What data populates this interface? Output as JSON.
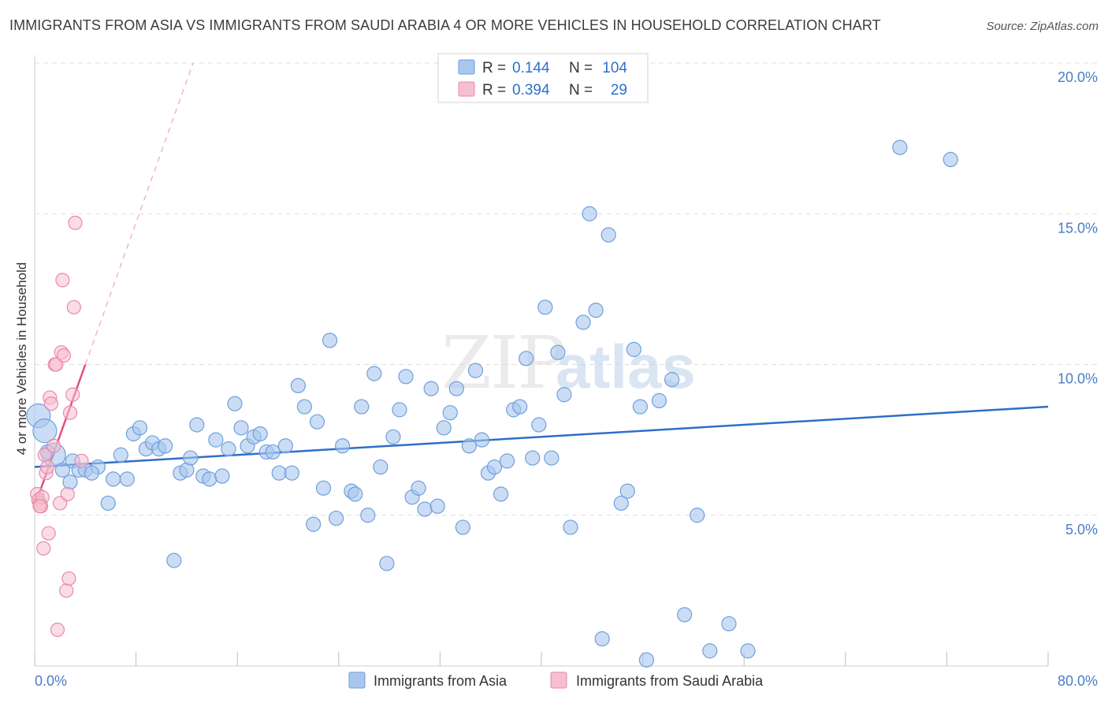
{
  "header": {
    "title": "IMMIGRANTS FROM ASIA VS IMMIGRANTS FROM SAUDI ARABIA 4 OR MORE VEHICLES IN HOUSEHOLD CORRELATION CHART",
    "source": "Source: ZipAtlas.com"
  },
  "watermark": {
    "text_zip": "ZIP",
    "text_atlas": "atlas"
  },
  "colors": {
    "asia_fill": "#a9c7ee",
    "asia_stroke": "#6f9fdc",
    "asia_line": "#2f6ec9",
    "saudi_fill": "#f6bfd0",
    "saudi_stroke": "#e98aa8",
    "saudi_line": "#e0507f",
    "tick_label": "#4a7cc7",
    "grid": "#dddddd"
  },
  "legend": {
    "rows": [
      {
        "r_label": "R =",
        "r_value": "0.144",
        "n_label": "N =",
        "n_value": "104"
      },
      {
        "r_label": "R =",
        "r_value": "0.394",
        "n_label": "N =",
        "n_value": "29"
      }
    ]
  },
  "chart_data": {
    "type": "scatter",
    "title": "IMMIGRANTS FROM ASIA VS IMMIGRANTS FROM SAUDI ARABIA 4 OR MORE VEHICLES IN HOUSEHOLD CORRELATION CHART",
    "ylabel": "4 or more Vehicles in Household",
    "xlim": [
      0,
      80
    ],
    "ylim": [
      0,
      20
    ],
    "x_tick_labels": [
      "0.0%",
      "80.0%"
    ],
    "y_ticks": [
      5,
      10,
      15,
      20
    ],
    "y_tick_labels": [
      "5.0%",
      "10.0%",
      "15.0%",
      "20.0%"
    ],
    "grid": true,
    "legend_position": "top-center",
    "series": [
      {
        "name": "Immigrants from Asia",
        "trend": {
          "x": [
            0,
            80
          ],
          "y": [
            6.6,
            8.6
          ]
        },
        "points": [
          [
            0.3,
            8.3
          ],
          [
            0.8,
            7.8
          ],
          [
            1.5,
            7.0
          ],
          [
            2.2,
            6.5
          ],
          [
            3.0,
            6.8
          ],
          [
            3.5,
            6.5
          ],
          [
            4.0,
            6.5
          ],
          [
            5.0,
            6.6
          ],
          [
            4.5,
            6.4
          ],
          [
            2.8,
            6.1
          ],
          [
            5.8,
            5.4
          ],
          [
            6.2,
            6.2
          ],
          [
            6.8,
            7.0
          ],
          [
            7.3,
            6.2
          ],
          [
            7.8,
            7.7
          ],
          [
            8.3,
            7.9
          ],
          [
            8.8,
            7.2
          ],
          [
            9.3,
            7.4
          ],
          [
            9.8,
            7.2
          ],
          [
            10.3,
            7.3
          ],
          [
            11.0,
            3.5
          ],
          [
            11.5,
            6.4
          ],
          [
            12.0,
            6.5
          ],
          [
            12.3,
            6.9
          ],
          [
            12.8,
            8.0
          ],
          [
            13.3,
            6.3
          ],
          [
            13.8,
            6.2
          ],
          [
            14.3,
            7.5
          ],
          [
            14.8,
            6.3
          ],
          [
            15.3,
            7.2
          ],
          [
            15.8,
            8.7
          ],
          [
            16.3,
            7.9
          ],
          [
            16.8,
            7.3
          ],
          [
            17.3,
            7.6
          ],
          [
            17.8,
            7.7
          ],
          [
            18.3,
            7.1
          ],
          [
            18.8,
            7.1
          ],
          [
            19.3,
            6.4
          ],
          [
            19.8,
            7.3
          ],
          [
            20.3,
            6.4
          ],
          [
            20.8,
            9.3
          ],
          [
            21.3,
            8.6
          ],
          [
            22.0,
            4.7
          ],
          [
            22.3,
            8.1
          ],
          [
            22.8,
            5.9
          ],
          [
            23.3,
            10.8
          ],
          [
            23.8,
            4.9
          ],
          [
            24.3,
            7.3
          ],
          [
            25.0,
            5.8
          ],
          [
            25.3,
            5.7
          ],
          [
            25.8,
            8.6
          ],
          [
            26.3,
            5.0
          ],
          [
            26.8,
            9.7
          ],
          [
            27.3,
            6.6
          ],
          [
            27.8,
            3.4
          ],
          [
            28.3,
            7.6
          ],
          [
            28.8,
            8.5
          ],
          [
            29.3,
            9.6
          ],
          [
            29.8,
            5.6
          ],
          [
            30.3,
            5.9
          ],
          [
            30.8,
            5.2
          ],
          [
            31.3,
            9.2
          ],
          [
            31.8,
            5.3
          ],
          [
            32.3,
            7.9
          ],
          [
            32.8,
            8.4
          ],
          [
            33.3,
            9.2
          ],
          [
            33.8,
            4.6
          ],
          [
            34.3,
            7.3
          ],
          [
            34.8,
            9.8
          ],
          [
            35.3,
            7.5
          ],
          [
            35.8,
            6.4
          ],
          [
            36.3,
            6.6
          ],
          [
            36.8,
            5.7
          ],
          [
            37.3,
            6.8
          ],
          [
            37.8,
            8.5
          ],
          [
            38.3,
            8.6
          ],
          [
            38.8,
            10.2
          ],
          [
            39.3,
            6.9
          ],
          [
            39.8,
            8.0
          ],
          [
            40.3,
            11.9
          ],
          [
            40.8,
            6.9
          ],
          [
            41.3,
            10.4
          ],
          [
            41.8,
            9.0
          ],
          [
            42.3,
            4.6
          ],
          [
            43.3,
            11.4
          ],
          [
            43.8,
            15.0
          ],
          [
            44.3,
            11.8
          ],
          [
            44.8,
            0.9
          ],
          [
            45.3,
            14.3
          ],
          [
            46.3,
            5.4
          ],
          [
            46.8,
            5.8
          ],
          [
            47.3,
            10.5
          ],
          [
            47.8,
            8.6
          ],
          [
            48.3,
            0.2
          ],
          [
            49.3,
            8.8
          ],
          [
            50.3,
            9.5
          ],
          [
            51.3,
            1.7
          ],
          [
            52.3,
            5.0
          ],
          [
            53.3,
            0.5
          ],
          [
            54.8,
            1.4
          ],
          [
            56.3,
            0.5
          ],
          [
            68.3,
            17.2
          ],
          [
            72.3,
            16.8
          ],
          [
            1.0,
            7.1
          ]
        ],
        "large_points": [
          [
            0.3,
            8.3
          ],
          [
            0.8,
            7.8
          ],
          [
            1.5,
            7.0
          ]
        ]
      },
      {
        "name": "Immigrants from Saudi Arabia",
        "trend_solid": {
          "x": [
            0,
            4
          ],
          "y": [
            5.3,
            10.0
          ]
        },
        "trend_dashed": {
          "x": [
            4,
            12.5
          ],
          "y": [
            10.0,
            20.0
          ]
        },
        "points": [
          [
            0.2,
            5.7
          ],
          [
            0.3,
            5.5
          ],
          [
            0.4,
            5.4
          ],
          [
            0.5,
            5.3
          ],
          [
            0.6,
            5.6
          ],
          [
            0.4,
            5.3
          ],
          [
            0.7,
            3.9
          ],
          [
            0.8,
            7.0
          ],
          [
            0.9,
            6.4
          ],
          [
            1.0,
            6.6
          ],
          [
            1.1,
            4.4
          ],
          [
            1.2,
            8.9
          ],
          [
            1.3,
            8.7
          ],
          [
            1.5,
            7.3
          ],
          [
            1.6,
            10.0
          ],
          [
            1.7,
            10.0
          ],
          [
            1.8,
            1.2
          ],
          [
            2.0,
            5.4
          ],
          [
            2.1,
            10.4
          ],
          [
            2.2,
            12.8
          ],
          [
            2.3,
            10.3
          ],
          [
            2.5,
            2.5
          ],
          [
            2.6,
            5.7
          ],
          [
            2.7,
            2.9
          ],
          [
            2.8,
            8.4
          ],
          [
            3.0,
            9.0
          ],
          [
            3.1,
            11.9
          ],
          [
            3.2,
            14.7
          ],
          [
            3.7,
            6.8
          ]
        ]
      }
    ]
  },
  "bottom_legend": {
    "items": [
      {
        "label": "Immigrants from Asia"
      },
      {
        "label": "Immigrants from Saudi Arabia"
      }
    ]
  }
}
